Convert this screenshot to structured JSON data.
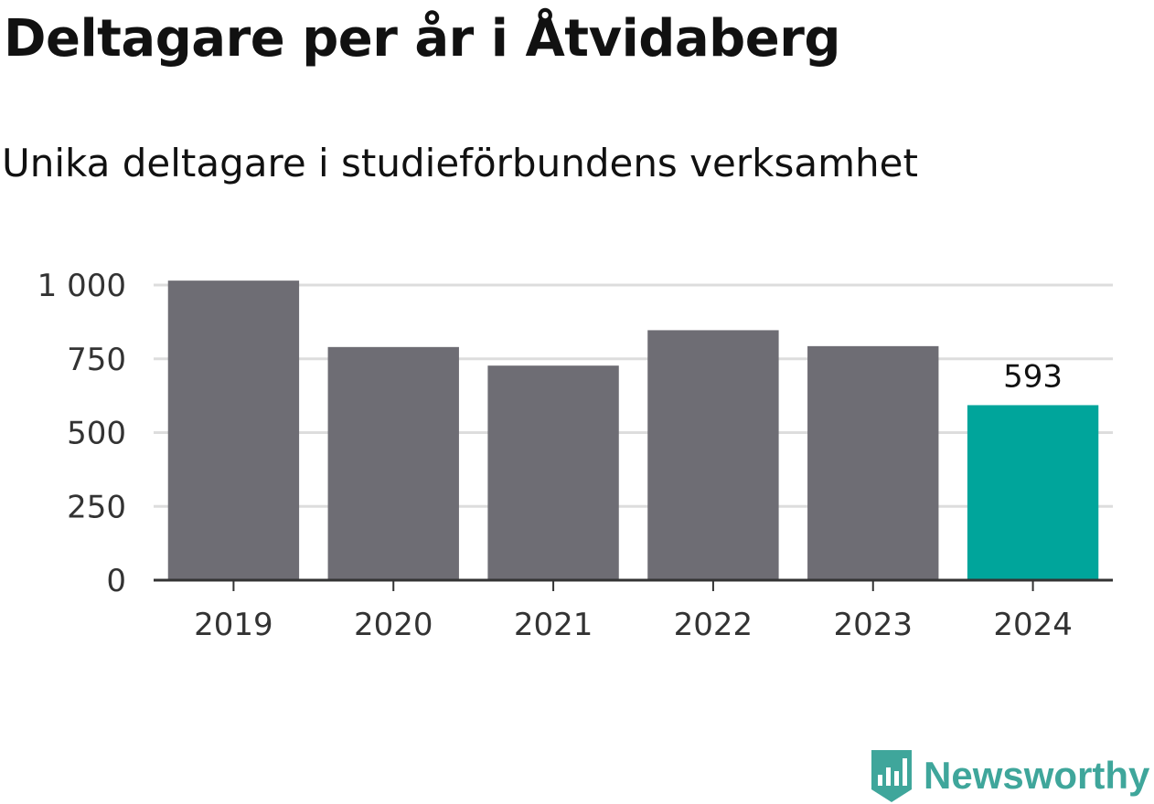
{
  "title": "Deltagare per år i Åtvidaberg",
  "subtitle": "Unika deltagare i studieförbundens verksamhet",
  "brand": {
    "name": "Newsworthy",
    "color": "#3fa69b",
    "icon": "newsworthy-chart-bubble-icon"
  },
  "colors": {
    "bar": "#6e6d74",
    "highlight": "#00a59b",
    "grid": "#dddddd",
    "axis": "#333333"
  },
  "chart_data": {
    "type": "bar",
    "title": "Deltagare per år i Åtvidaberg",
    "subtitle": "Unika deltagare i studieförbundens verksamhet",
    "xlabel": "",
    "ylabel": "",
    "categories": [
      "2019",
      "2020",
      "2021",
      "2022",
      "2023",
      "2024"
    ],
    "values": [
      1015,
      790,
      727,
      847,
      793,
      593
    ],
    "highlight_index": 5,
    "data_labels": [
      null,
      null,
      null,
      null,
      null,
      "593"
    ],
    "ylim": [
      0,
      1000
    ],
    "yticks": [
      0,
      250,
      500,
      750,
      1000
    ],
    "ytick_labels": [
      "0",
      "250",
      "500",
      "750",
      "1 000"
    ],
    "grid": true,
    "legend": "none"
  }
}
